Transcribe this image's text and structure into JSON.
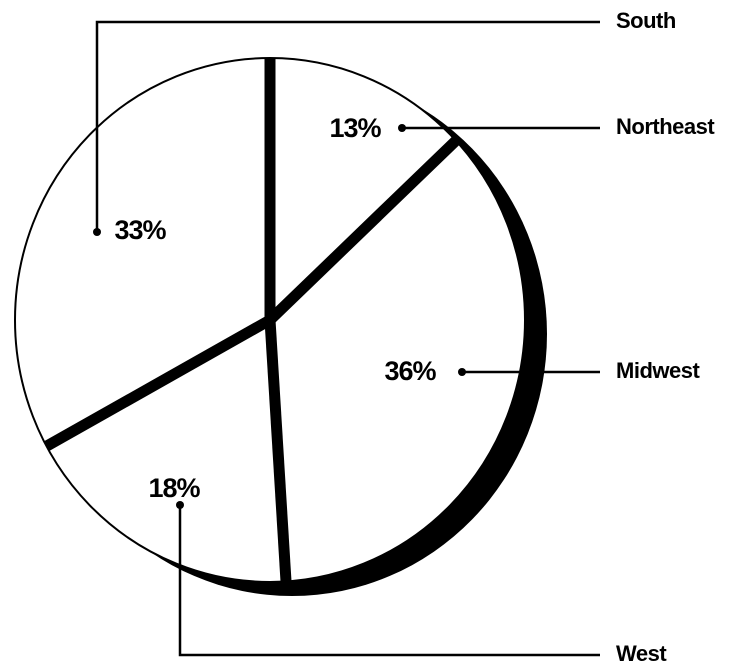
{
  "chart_data": {
    "type": "pie",
    "categories": [
      "Northeast",
      "Midwest",
      "West",
      "South"
    ],
    "values": [
      13,
      36,
      18,
      33
    ],
    "value_labels": [
      "13%",
      "36%",
      "18%",
      "33%"
    ],
    "color": "#ffffff"
  }
}
